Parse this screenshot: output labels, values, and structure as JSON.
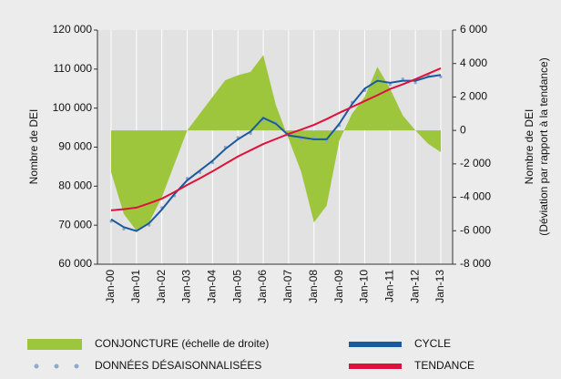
{
  "chart_data": {
    "type": "line",
    "ylabel": "Nombre de DEI",
    "y2label": [
      "Nombre de DEI",
      "(Déviation par rapport à la tendance)"
    ],
    "categories": [
      "Jan-00",
      null,
      "Jan-01",
      null,
      "Jan-02",
      null,
      "Jan-03",
      null,
      "Jan-04",
      null,
      "Jan-05",
      null,
      "Jan-06",
      null,
      "Jan-07",
      null,
      "Jan-08",
      null,
      "Jan-09",
      null,
      "Jan-10",
      null,
      "Jan-11",
      null,
      "Jan-12",
      null,
      "Jan-13"
    ],
    "ylim": [
      60000,
      120000
    ],
    "yticks": [
      {
        "value": 60000,
        "label": "60 000"
      },
      {
        "value": 70000,
        "label": "70 000"
      },
      {
        "value": 80000,
        "label": "80 000"
      },
      {
        "value": 90000,
        "label": "90 000"
      },
      {
        "value": 100000,
        "label": "100 000"
      },
      {
        "value": 110000,
        "label": "110 000"
      },
      {
        "value": 120000,
        "label": "120 000"
      }
    ],
    "y2lim": [
      -8000,
      6000
    ],
    "y2ticks": [
      {
        "value": -8000,
        "label": "-8 000"
      },
      {
        "value": -6000,
        "label": "-6 000"
      },
      {
        "value": -4000,
        "label": "-4 000"
      },
      {
        "value": -2000,
        "label": "-2 000"
      },
      0,
      {
        "value": 2000,
        "label": "2 000"
      },
      {
        "value": 4000,
        "label": "4 000"
      },
      {
        "value": 6000,
        "label": "6 000"
      }
    ],
    "grid": true,
    "series": [
      {
        "name": "CONJONCTURE (échelle de droite)",
        "type": "area",
        "axis": "y2",
        "color": "#9dc63c",
        "values": [
          -2500,
          -5000,
          -6000,
          -5500,
          -4000,
          -2000,
          0,
          1000,
          2000,
          3000,
          3300,
          3500,
          4500,
          1500,
          -500,
          -2500,
          -5500,
          -4500,
          -600,
          1000,
          2000,
          3800,
          2500,
          900,
          0,
          -800,
          -1300
        ]
      },
      {
        "name": "DONNÉES DÉSAISONNALISÉES",
        "type": "scatter",
        "color": "#8fa8cc",
        "values": [
          71000,
          69000,
          68800,
          70000,
          74500,
          77500,
          82000,
          83500,
          86000,
          90000,
          92500,
          93500,
          97000,
          96500,
          93500,
          92000,
          92500,
          91500,
          95500,
          101500,
          104500,
          108000,
          106000,
          107500,
          106500,
          108500,
          108000
        ]
      },
      {
        "name": "CYCLE",
        "type": "line",
        "color": "#1a5aa0",
        "values": [
          71500,
          69500,
          68500,
          70500,
          74000,
          78000,
          81500,
          84000,
          86500,
          89500,
          92000,
          94000,
          97500,
          96000,
          93000,
          92500,
          92000,
          92000,
          96000,
          101000,
          105000,
          107000,
          106500,
          107000,
          107000,
          108000,
          108500
        ]
      },
      {
        "name": "TENDANCE",
        "type": "line",
        "color": "#e0103c",
        "values": [
          73800,
          74100,
          74500,
          75600,
          76800,
          78500,
          80300,
          82000,
          83800,
          85700,
          87600,
          89200,
          90800,
          92100,
          93400,
          94500,
          95700,
          97200,
          98800,
          100300,
          101800,
          103300,
          104900,
          106100,
          107400,
          108800,
          110200
        ]
      }
    ]
  }
}
